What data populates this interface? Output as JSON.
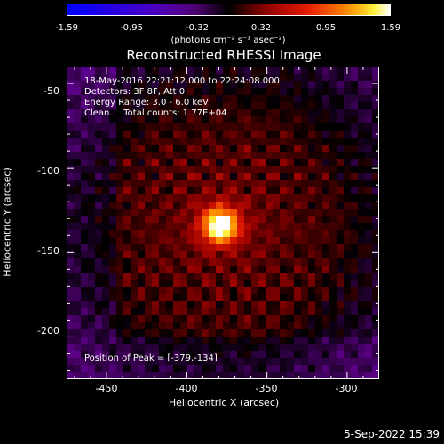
{
  "colorbar": {
    "labels": [
      "-1.59",
      "-0.95",
      "-0.32",
      "0.32",
      "0.95",
      "1.59"
    ],
    "units": "(photons cm⁻² s⁻¹ asec⁻²)"
  },
  "title": "Reconstructed RHESSI Image",
  "info": {
    "line1": "18-May-2016 22:21:12.000 to 22:24:08.000",
    "line2": "Detectors: 3F 8F, Att 0",
    "line3": "Energy Range: 3.0 - 6.0 keV",
    "line4": "Clean     Total counts: 1.77E+04",
    "peak": "Position of Peak = [-379,-134]"
  },
  "axes": {
    "xlabel": "Heliocentric X (arcsec)",
    "ylabel": "Heliocentric Y (arcsec)",
    "xticks": [
      "-450",
      "-400",
      "-350",
      "-300"
    ],
    "yticks": [
      "-50",
      "-100",
      "-150",
      "-200"
    ]
  },
  "footer": "5-Sep-2022 15:39",
  "chart_data": {
    "type": "heatmap",
    "title": "Reconstructed RHESSI Image",
    "xlabel": "Heliocentric X (arcsec)",
    "ylabel": "Heliocentric Y (arcsec)",
    "xlim": [
      -475,
      -280
    ],
    "ylim": [
      -225,
      -40
    ],
    "xticks": [
      -450,
      -400,
      -350,
      -300
    ],
    "yticks": [
      -50,
      -100,
      -150,
      -200
    ],
    "colorbar_range": [
      -1.59,
      1.59
    ],
    "peak": {
      "x": -379,
      "y": -134
    }
  }
}
